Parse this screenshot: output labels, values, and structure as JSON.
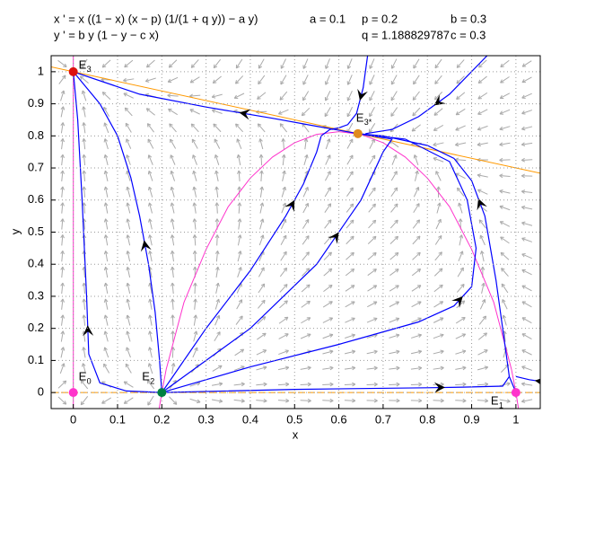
{
  "chart_data": {
    "type": "phase",
    "equations": [
      "x ' = x ((1 − x) (x − p) (1/(1 + q y)) − a y)",
      "y ' = b y (1 − y − c x)"
    ],
    "parameters": [
      {
        "value": 0.1,
        "label": "a = 0.1"
      },
      {
        "value": 0.2,
        "label": "p = 0.2"
      },
      {
        "value": 0.3,
        "label": "b = 0.3"
      },
      {
        "value": 1.188829787,
        "label": "q = 1.188829787"
      },
      {
        "value": 0.3,
        "label": "c = 0.3"
      }
    ],
    "xlabel": "x",
    "ylabel": "y",
    "xlim": [
      -0.05,
      1.055
    ],
    "ylim": [
      -0.05,
      1.05
    ],
    "xticks": [
      0,
      0.1,
      0.2,
      0.3,
      0.4,
      0.5,
      0.6,
      0.7,
      0.8,
      0.9,
      1
    ],
    "yticks": [
      0,
      0.1,
      0.2,
      0.3,
      0.4,
      0.5,
      0.6,
      0.7,
      0.8,
      0.9,
      1
    ],
    "grid": true,
    "nullclines": [
      {
        "color": "#ff9900",
        "x": [
          -0.05,
          1.055
        ],
        "y": [
          1.015,
          0.6835
        ]
      },
      {
        "color": "#ff9900",
        "x": [
          -0.05,
          1.055
        ],
        "y": [
          0,
          0
        ]
      },
      {
        "color": "#ff33cc",
        "x": [
          0,
          0
        ],
        "y": [
          -0.05,
          1.05
        ]
      },
      {
        "color": "#ff33cc",
        "x": [
          0.19,
          0.195,
          0.2,
          0.21,
          0.25,
          0.3,
          0.35,
          0.4,
          0.45,
          0.5,
          0.55,
          0.6,
          0.65,
          0.7,
          0.75,
          0.8,
          0.85,
          0.9,
          0.95,
          0.99,
          1,
          1.005,
          1.01
        ],
        "y": [
          -0.0907,
          -0.0424,
          0,
          0.0727,
          0.281,
          0.446,
          0.5792,
          0.6686,
          0.7341,
          0.7788,
          0.8048,
          0.8133,
          0.8048,
          0.7788,
          0.7341,
          0.6686,
          0.5792,
          0.446,
          0.281,
          0.0727,
          0,
          -0.0424,
          -0.0907
        ]
      }
    ],
    "trajectories": [
      {
        "color": "#0000ff",
        "x": [
          0.2,
          0.195,
          0.185,
          0.17,
          0.15,
          0.13,
          0.1,
          0.06,
          0
        ],
        "y": [
          0,
          0.1,
          0.25,
          0.4,
          0.55,
          0.67,
          0.8,
          0.9,
          1
        ]
      },
      {
        "color": "#0000ff",
        "x": [
          0.2,
          0.12,
          0.06,
          0.035,
          0.03,
          0.025,
          0.02,
          0.01,
          0
        ],
        "y": [
          0,
          0.005,
          0.03,
          0.12,
          0.3,
          0.45,
          0.6,
          0.85,
          1
        ]
      },
      {
        "color": "#0000ff",
        "x": [
          0.643,
          0.55,
          0.45,
          0.3,
          0.15,
          0
        ],
        "y": [
          0.807,
          0.83,
          0.855,
          0.89,
          0.93,
          1
        ]
      },
      {
        "color": "#0000ff",
        "x": [
          1,
          0.985,
          0.97,
          0.955,
          0.93,
          0.9,
          0.86,
          0.8,
          0.7,
          0.643
        ],
        "y": [
          0,
          0.05,
          0.2,
          0.35,
          0.55,
          0.66,
          0.73,
          0.77,
          0.8,
          0.807
        ]
      },
      {
        "color": "#0000ff",
        "x": [
          1.055,
          1.03,
          1.0
        ],
        "y": [
          0.035,
          0.04,
          0.05
        ]
      },
      {
        "color": "#0000ff",
        "x": [
          0.665,
          0.655,
          0.64,
          0.62,
          0.6
        ],
        "y": [
          1.05,
          0.95,
          0.87,
          0.835,
          0.825
        ]
      },
      {
        "color": "#0000ff",
        "x": [
          0.935,
          0.85,
          0.78,
          0.72,
          0.66
        ],
        "y": [
          1.05,
          0.93,
          0.86,
          0.82,
          0.807
        ]
      },
      {
        "color": "#0000ff",
        "x": [
          0.2,
          0.3,
          0.4,
          0.48,
          0.52,
          0.55,
          0.56,
          0.58,
          0.6
        ],
        "y": [
          0,
          0.2,
          0.38,
          0.55,
          0.65,
          0.75,
          0.8,
          0.82,
          0.825
        ]
      },
      {
        "color": "#0000ff",
        "x": [
          0.2,
          0.4,
          0.55,
          0.65,
          0.7,
          0.72,
          0.643
        ],
        "y": [
          0,
          0.2,
          0.4,
          0.6,
          0.75,
          0.79,
          0.807
        ]
      },
      {
        "color": "#0000ff",
        "x": [
          0.2,
          0.4,
          0.6,
          0.78,
          0.86,
          0.9,
          0.91,
          0.89,
          0.85,
          0.75,
          0.643
        ],
        "y": [
          0,
          0.08,
          0.15,
          0.22,
          0.27,
          0.33,
          0.45,
          0.6,
          0.72,
          0.79,
          0.807
        ]
      },
      {
        "color": "#0000ff",
        "x": [
          0.2,
          0.5,
          0.8,
          0.88,
          0.97,
          0.985
        ],
        "y": [
          0,
          0.01,
          0.015,
          0.017,
          0.02,
          0.05
        ]
      }
    ],
    "equilibria": {
      "x": [
        0,
        1,
        0.2,
        0,
        0.643
      ],
      "y": [
        0,
        0,
        0,
        1,
        0.807
      ],
      "colors": [
        "#ff33cc",
        "#ff33cc",
        "#008040",
        "#dd1111",
        "#e08a1e"
      ],
      "labels": [
        "E",
        "E",
        "E",
        "E",
        "E"
      ],
      "subscripts": [
        "0",
        "1",
        "2",
        "3",
        "3*"
      ]
    }
  }
}
